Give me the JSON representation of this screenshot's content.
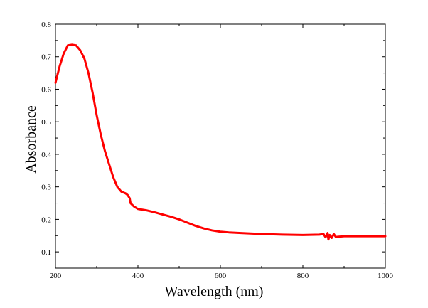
{
  "chart_data": {
    "type": "line",
    "title": "",
    "xlabel": "Wavelength (nm)",
    "ylabel": "Absorbance",
    "xlim": [
      200,
      1000
    ],
    "ylim": [
      0.05,
      0.8
    ],
    "x_ticks": [
      200,
      400,
      600,
      800,
      1000
    ],
    "x_tick_labels": [
      "200",
      "400",
      "600",
      "800",
      "1000"
    ],
    "y_ticks": [
      0.1,
      0.2,
      0.3,
      0.4,
      0.5,
      0.6,
      0.7,
      0.8
    ],
    "y_tick_labels": [
      "0.1",
      "0.2",
      "0.3",
      "0.4",
      "0.5",
      "0.6",
      "0.7",
      "0.8"
    ],
    "grid": false,
    "legend": "none",
    "series": [
      {
        "color": "#ff0000",
        "x": [
          200,
          210,
          220,
          230,
          240,
          250,
          260,
          270,
          280,
          290,
          300,
          310,
          320,
          330,
          340,
          350,
          360,
          370,
          375,
          380,
          382,
          390,
          400,
          420,
          440,
          460,
          480,
          500,
          520,
          540,
          560,
          580,
          600,
          620,
          650,
          700,
          750,
          800,
          840,
          850,
          855,
          860,
          862,
          865,
          870,
          875,
          880,
          900,
          950,
          1000
        ],
        "y": [
          0.62,
          0.67,
          0.71,
          0.735,
          0.737,
          0.735,
          0.72,
          0.695,
          0.65,
          0.59,
          0.52,
          0.46,
          0.41,
          0.37,
          0.33,
          0.3,
          0.285,
          0.28,
          0.275,
          0.265,
          0.25,
          0.24,
          0.232,
          0.228,
          0.222,
          0.215,
          0.208,
          0.2,
          0.19,
          0.18,
          0.172,
          0.166,
          0.162,
          0.16,
          0.158,
          0.155,
          0.153,
          0.152,
          0.153,
          0.155,
          0.145,
          0.158,
          0.138,
          0.152,
          0.143,
          0.155,
          0.146,
          0.148,
          0.148,
          0.148
        ]
      }
    ]
  }
}
